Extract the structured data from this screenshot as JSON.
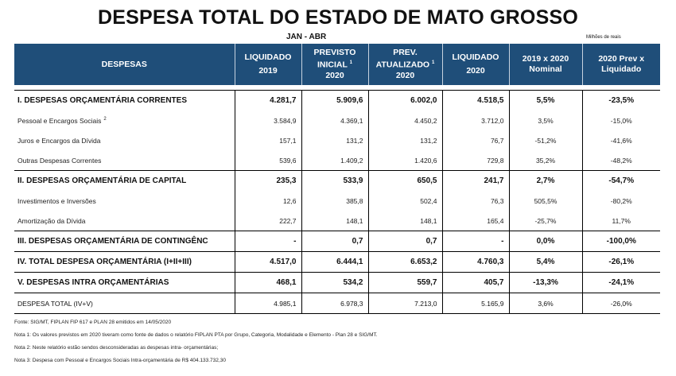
{
  "title": "DESPESA TOTAL DO ESTADO DE MATO GROSSO",
  "period": "JAN - ABR",
  "units": "Milhões de reais",
  "headers": {
    "despesas": "DESPESAS",
    "h1_line1": "LIQUIDADO",
    "h1_line2": "2019",
    "h2_line1": "PREVISTO",
    "h2_line2": "INICIAL",
    "h2_sup": "1",
    "h2_line3": "2020",
    "h3_line1": "PREV.",
    "h3_line2": "ATUALIZADO",
    "h3_sup": "1",
    "h3_line3": "2020",
    "h4_line1": "LIQUIDADO",
    "h4_line2": "2020",
    "h5_line1": "2019 x 2020",
    "h5_line2": "Nominal",
    "h6_line1": "2020 Prev x",
    "h6_line2": "Liquidado"
  },
  "rows": [
    {
      "label": "I. DESPESAS ORÇAMENTÁRIA CORRENTES",
      "sup": "",
      "v1": "4.281,7",
      "v2": "5.909,6",
      "v3": "6.002,0",
      "v4": "4.518,5",
      "p1": "5,5%",
      "p2": "-23,5%"
    },
    {
      "label": "Pessoal e Encargos Sociais",
      "sup": "2",
      "v1": "3.584,9",
      "v2": "4.369,1",
      "v3": "4.450,2",
      "v4": "3.712,0",
      "p1": "3,5%",
      "p2": "-15,0%"
    },
    {
      "label": "Juros e Encargos da Dívida",
      "sup": "",
      "v1": "157,1",
      "v2": "131,2",
      "v3": "131,2",
      "v4": "76,7",
      "p1": "-51,2%",
      "p2": "-41,6%"
    },
    {
      "label": "Outras Despesas Correntes",
      "sup": "",
      "v1": "539,6",
      "v2": "1.409,2",
      "v3": "1.420,6",
      "v4": "729,8",
      "p1": "35,2%",
      "p2": "-48,2%"
    },
    {
      "label": "II. DESPESAS ORÇAMENTÁRIA DE CAPITAL",
      "sup": "",
      "v1": "235,3",
      "v2": "533,9",
      "v3": "650,5",
      "v4": "241,7",
      "p1": "2,7%",
      "p2": "-54,7%"
    },
    {
      "label": "Investimentos e Inversões",
      "sup": "",
      "v1": "12,6",
      "v2": "385,8",
      "v3": "502,4",
      "v4": "76,3",
      "p1": "505,5%",
      "p2": "-80,2%"
    },
    {
      "label": "Amortização da Dívida",
      "sup": "",
      "v1": "222,7",
      "v2": "148,1",
      "v3": "148,1",
      "v4": "165,4",
      "p1": "-25,7%",
      "p2": "11,7%"
    },
    {
      "label": "III. DESPESAS ORÇAMENTÁRIA DE CONTINGÊNC",
      "sup": "",
      "v1": "-",
      "v2": "0,7",
      "v3": "0,7",
      "v4": "-",
      "p1": "0,0%",
      "p2": "-100,0%"
    },
    {
      "label": "IV. TOTAL DESPESA ORÇAMENTÁRIA (I+II+III)",
      "sup": "",
      "v1": "4.517,0",
      "v2": "6.444,1",
      "v3": "6.653,2",
      "v4": "4.760,3",
      "p1": "5,4%",
      "p2": "-26,1%"
    },
    {
      "label": "V. DESPESAS INTRA ORÇAMENTÁRIAS",
      "sup": "",
      "v1": "468,1",
      "v2": "534,2",
      "v3": "559,7",
      "v4": "405,7",
      "p1": "-13,3%",
      "p2": "-24,1%"
    },
    {
      "label": "DESPESA TOTAL (IV+V)",
      "sup": "",
      "v1": "4.985,1",
      "v2": "6.978,3",
      "v3": "7.213,0",
      "v4": "5.165,9",
      "p1": "3,6%",
      "p2": "-26,0%"
    }
  ],
  "notes": [
    "Fonte: SIG/MT, FIPLAN FIP 617 e PLAN 28 emitidos em 14/05/2020",
    "Nota 1: Os valores previstos em 2020 tiveram como fonte de dados o relatório FIPLAN PTA por Grupo, Categoria, Modalidade e Elemento - Plan 28 e SIG/MT.",
    "Nota 2: Neste relatório estão sendos desconsideradas as despesas intra- orçamentárias;",
    "Nota 3: Despesa com Pessoal e Encargos Sociais Intra-orçamentária de R$ 404.133.732,30"
  ]
}
